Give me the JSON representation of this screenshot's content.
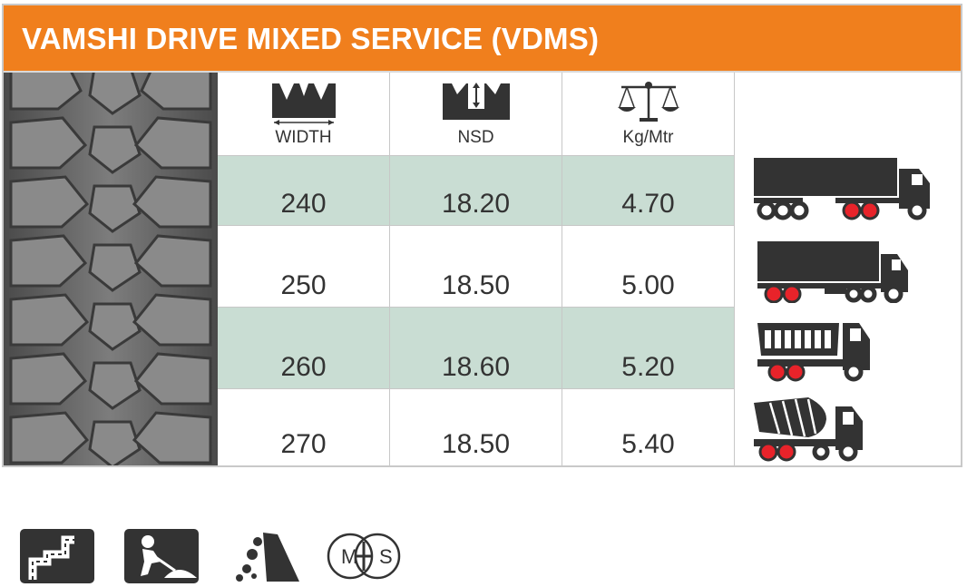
{
  "header": {
    "title": "VAMSHI DRIVE MIXED SERVICE (VDMS)"
  },
  "columns": [
    {
      "label": "WIDTH",
      "icon": "width-icon"
    },
    {
      "label": "NSD",
      "icon": "nsd-depth-icon"
    },
    {
      "label": "Kg/Mtr",
      "icon": "balance-scale-icon"
    }
  ],
  "rows": [
    {
      "width": "240",
      "nsd": "18.20",
      "kg": "4.70",
      "vehicle": "semi-trailer-truck-icon"
    },
    {
      "width": "250",
      "nsd": "18.50",
      "kg": "5.00",
      "vehicle": "box-truck-icon"
    },
    {
      "width": "260",
      "nsd": "18.60",
      "kg": "5.20",
      "vehicle": "tipper-truck-icon"
    },
    {
      "width": "270",
      "nsd": "18.50",
      "kg": "5.40",
      "vehicle": "cement-mixer-truck-icon"
    }
  ],
  "footer_icons": [
    "winding-road-icon",
    "construction-worker-icon",
    "mining-rocks-icon",
    "mud-snow-ms-icon"
  ],
  "footer_labels": {
    "ms_m": "M",
    "ms_s": "S"
  },
  "colors": {
    "header": "#f07f1d",
    "shade": "#c9ddd3",
    "wheel_red": "#e8232a",
    "icon_dark": "#333333"
  }
}
